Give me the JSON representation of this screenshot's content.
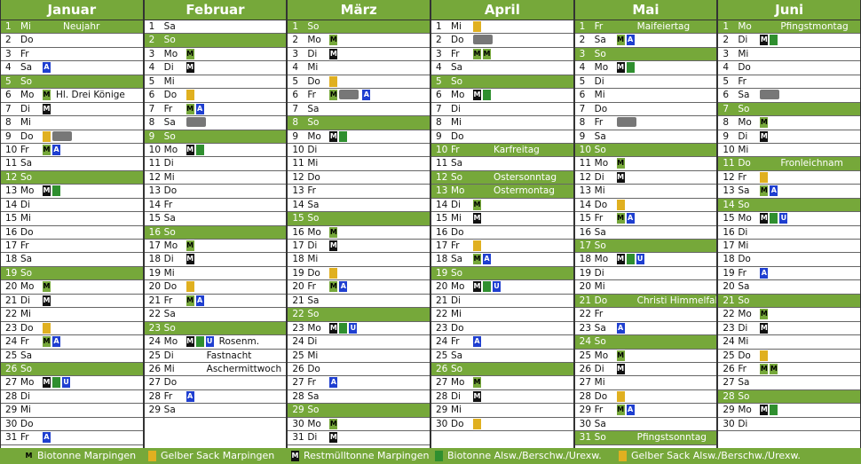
{
  "months": [
    {
      "name": "Januar",
      "days": [
        {
          "d": "1",
          "w": "Mi",
          "label": "Neujahr",
          "hl": true
        },
        {
          "d": "2",
          "w": "Do"
        },
        {
          "d": "3",
          "w": "Fr"
        },
        {
          "d": "4",
          "w": "Sa",
          "icons": [
            "a"
          ]
        },
        {
          "d": "5",
          "w": "So",
          "hl": true
        },
        {
          "d": "6",
          "w": "Mo",
          "label": "Hl. Drei Könige",
          "icons": [
            "m"
          ]
        },
        {
          "d": "7",
          "w": "Di",
          "icons": [
            "r"
          ]
        },
        {
          "d": "8",
          "w": "Mi"
        },
        {
          "d": "9",
          "w": "Do",
          "icons": [
            "y",
            "truck"
          ]
        },
        {
          "d": "10",
          "w": "Fr",
          "icons": [
            "m",
            "a"
          ]
        },
        {
          "d": "11",
          "w": "Sa"
        },
        {
          "d": "12",
          "w": "So",
          "hl": true
        },
        {
          "d": "13",
          "w": "Mo",
          "icons": [
            "r",
            "g"
          ]
        },
        {
          "d": "14",
          "w": "Di"
        },
        {
          "d": "15",
          "w": "Mi"
        },
        {
          "d": "16",
          "w": "Do"
        },
        {
          "d": "17",
          "w": "Fr"
        },
        {
          "d": "18",
          "w": "Sa"
        },
        {
          "d": "19",
          "w": "So",
          "hl": true
        },
        {
          "d": "20",
          "w": "Mo",
          "icons": [
            "m"
          ]
        },
        {
          "d": "21",
          "w": "Di",
          "icons": [
            "r"
          ]
        },
        {
          "d": "22",
          "w": "Mi"
        },
        {
          "d": "23",
          "w": "Do",
          "icons": [
            "y"
          ]
        },
        {
          "d": "24",
          "w": "Fr",
          "icons": [
            "m",
            "a"
          ]
        },
        {
          "d": "25",
          "w": "Sa"
        },
        {
          "d": "26",
          "w": "So",
          "hl": true
        },
        {
          "d": "27",
          "w": "Mo",
          "icons": [
            "r",
            "g",
            "u"
          ]
        },
        {
          "d": "28",
          "w": "Di"
        },
        {
          "d": "29",
          "w": "Mi"
        },
        {
          "d": "30",
          "w": "Do"
        },
        {
          "d": "31",
          "w": "Fr",
          "icons": [
            "a"
          ]
        }
      ]
    },
    {
      "name": "Februar",
      "days": [
        {
          "d": "1",
          "w": "Sa"
        },
        {
          "d": "2",
          "w": "So",
          "hl": true
        },
        {
          "d": "3",
          "w": "Mo",
          "icons": [
            "m"
          ]
        },
        {
          "d": "4",
          "w": "Di",
          "icons": [
            "r"
          ]
        },
        {
          "d": "5",
          "w": "Mi"
        },
        {
          "d": "6",
          "w": "Do",
          "icons": [
            "y"
          ]
        },
        {
          "d": "7",
          "w": "Fr",
          "icons": [
            "m",
            "a"
          ]
        },
        {
          "d": "8",
          "w": "Sa",
          "icons": [
            "truck"
          ]
        },
        {
          "d": "9",
          "w": "So",
          "hl": true
        },
        {
          "d": "10",
          "w": "Mo",
          "icons": [
            "r",
            "g"
          ]
        },
        {
          "d": "11",
          "w": "Di"
        },
        {
          "d": "12",
          "w": "Mi"
        },
        {
          "d": "13",
          "w": "Do"
        },
        {
          "d": "14",
          "w": "Fr"
        },
        {
          "d": "15",
          "w": "Sa"
        },
        {
          "d": "16",
          "w": "So",
          "hl": true
        },
        {
          "d": "17",
          "w": "Mo",
          "icons": [
            "m"
          ]
        },
        {
          "d": "18",
          "w": "Di",
          "icons": [
            "r"
          ]
        },
        {
          "d": "19",
          "w": "Mi"
        },
        {
          "d": "20",
          "w": "Do",
          "icons": [
            "y"
          ]
        },
        {
          "d": "21",
          "w": "Fr",
          "icons": [
            "m",
            "a"
          ]
        },
        {
          "d": "22",
          "w": "Sa"
        },
        {
          "d": "23",
          "w": "So",
          "hl": true
        },
        {
          "d": "24",
          "w": "Mo",
          "label": "Rosenm.",
          "icons": [
            "r",
            "g",
            "u"
          ]
        },
        {
          "d": "25",
          "w": "Di",
          "label": "Fastnacht"
        },
        {
          "d": "26",
          "w": "Mi",
          "label": "Aschermittwoch"
        },
        {
          "d": "27",
          "w": "Do"
        },
        {
          "d": "28",
          "w": "Fr",
          "icons": [
            "a"
          ]
        },
        {
          "d": "29",
          "w": "Sa"
        }
      ]
    },
    {
      "name": "März",
      "days": [
        {
          "d": "1",
          "w": "So",
          "hl": true
        },
        {
          "d": "2",
          "w": "Mo",
          "icons": [
            "m"
          ]
        },
        {
          "d": "3",
          "w": "Di",
          "icons": [
            "r"
          ]
        },
        {
          "d": "4",
          "w": "Mi"
        },
        {
          "d": "5",
          "w": "Do",
          "icons": [
            "y"
          ]
        },
        {
          "d": "6",
          "w": "Fr",
          "icons": [
            "m",
            "truck",
            "a"
          ]
        },
        {
          "d": "7",
          "w": "Sa"
        },
        {
          "d": "8",
          "w": "So",
          "hl": true
        },
        {
          "d": "9",
          "w": "Mo",
          "icons": [
            "r",
            "g"
          ]
        },
        {
          "d": "10",
          "w": "Di"
        },
        {
          "d": "11",
          "w": "Mi"
        },
        {
          "d": "12",
          "w": "Do"
        },
        {
          "d": "13",
          "w": "Fr"
        },
        {
          "d": "14",
          "w": "Sa"
        },
        {
          "d": "15",
          "w": "So",
          "hl": true
        },
        {
          "d": "16",
          "w": "Mo",
          "icons": [
            "m"
          ]
        },
        {
          "d": "17",
          "w": "Di",
          "icons": [
            "r"
          ]
        },
        {
          "d": "18",
          "w": "Mi"
        },
        {
          "d": "19",
          "w": "Do",
          "icons": [
            "y"
          ]
        },
        {
          "d": "20",
          "w": "Fr",
          "icons": [
            "m",
            "a"
          ]
        },
        {
          "d": "21",
          "w": "Sa"
        },
        {
          "d": "22",
          "w": "So",
          "hl": true
        },
        {
          "d": "23",
          "w": "Mo",
          "icons": [
            "r",
            "g",
            "u"
          ]
        },
        {
          "d": "24",
          "w": "Di"
        },
        {
          "d": "25",
          "w": "Mi"
        },
        {
          "d": "26",
          "w": "Do"
        },
        {
          "d": "27",
          "w": "Fr",
          "icons": [
            "a"
          ]
        },
        {
          "d": "28",
          "w": "Sa"
        },
        {
          "d": "29",
          "w": "So",
          "hl": true
        },
        {
          "d": "30",
          "w": "Mo",
          "icons": [
            "m"
          ]
        },
        {
          "d": "31",
          "w": "Di",
          "icons": [
            "r"
          ]
        }
      ]
    },
    {
      "name": "April",
      "days": [
        {
          "d": "1",
          "w": "Mi",
          "icons": [
            "y"
          ]
        },
        {
          "d": "2",
          "w": "Do",
          "icons": [
            "truck"
          ]
        },
        {
          "d": "3",
          "w": "Fr",
          "icons": [
            "m",
            "m"
          ]
        },
        {
          "d": "4",
          "w": "Sa"
        },
        {
          "d": "5",
          "w": "So",
          "hl": true
        },
        {
          "d": "6",
          "w": "Mo",
          "icons": [
            "r",
            "g"
          ]
        },
        {
          "d": "7",
          "w": "Di"
        },
        {
          "d": "8",
          "w": "Mi"
        },
        {
          "d": "9",
          "w": "Do"
        },
        {
          "d": "10",
          "w": "Fr",
          "label": "Karfreitag",
          "hl": true
        },
        {
          "d": "11",
          "w": "Sa"
        },
        {
          "d": "12",
          "w": "So",
          "label": "Ostersonntag",
          "hl": true
        },
        {
          "d": "13",
          "w": "Mo",
          "label": "Ostermontag",
          "hl": true
        },
        {
          "d": "14",
          "w": "Di",
          "icons": [
            "m"
          ]
        },
        {
          "d": "15",
          "w": "Mi",
          "icons": [
            "r"
          ]
        },
        {
          "d": "16",
          "w": "Do"
        },
        {
          "d": "17",
          "w": "Fr",
          "icons": [
            "y"
          ]
        },
        {
          "d": "18",
          "w": "Sa",
          "icons": [
            "m",
            "a"
          ]
        },
        {
          "d": "19",
          "w": "So",
          "hl": true
        },
        {
          "d": "20",
          "w": "Mo",
          "icons": [
            "r",
            "g",
            "u"
          ]
        },
        {
          "d": "21",
          "w": "Di"
        },
        {
          "d": "22",
          "w": "Mi"
        },
        {
          "d": "23",
          "w": "Do"
        },
        {
          "d": "24",
          "w": "Fr",
          "icons": [
            "a"
          ]
        },
        {
          "d": "25",
          "w": "Sa"
        },
        {
          "d": "26",
          "w": "So",
          "hl": true
        },
        {
          "d": "27",
          "w": "Mo",
          "icons": [
            "m"
          ]
        },
        {
          "d": "28",
          "w": "Di",
          "icons": [
            "r"
          ]
        },
        {
          "d": "29",
          "w": "Mi"
        },
        {
          "d": "30",
          "w": "Do",
          "icons": [
            "y"
          ]
        }
      ]
    },
    {
      "name": "Mai",
      "days": [
        {
          "d": "1",
          "w": "Fr",
          "label": "Maifeiertag",
          "hl": true
        },
        {
          "d": "2",
          "w": "Sa",
          "icons": [
            "m",
            "a"
          ]
        },
        {
          "d": "3",
          "w": "So",
          "hl": true
        },
        {
          "d": "4",
          "w": "Mo",
          "icons": [
            "r",
            "g"
          ]
        },
        {
          "d": "5",
          "w": "Di"
        },
        {
          "d": "6",
          "w": "Mi"
        },
        {
          "d": "7",
          "w": "Do"
        },
        {
          "d": "8",
          "w": "Fr",
          "icons": [
            "truck"
          ]
        },
        {
          "d": "9",
          "w": "Sa"
        },
        {
          "d": "10",
          "w": "So",
          "hl": true
        },
        {
          "d": "11",
          "w": "Mo",
          "icons": [
            "m"
          ]
        },
        {
          "d": "12",
          "w": "Di",
          "icons": [
            "r"
          ]
        },
        {
          "d": "13",
          "w": "Mi"
        },
        {
          "d": "14",
          "w": "Do",
          "icons": [
            "y"
          ]
        },
        {
          "d": "15",
          "w": "Fr",
          "icons": [
            "m",
            "a"
          ]
        },
        {
          "d": "16",
          "w": "Sa"
        },
        {
          "d": "17",
          "w": "So",
          "hl": true
        },
        {
          "d": "18",
          "w": "Mo",
          "icons": [
            "r",
            "g",
            "u"
          ]
        },
        {
          "d": "19",
          "w": "Di"
        },
        {
          "d": "20",
          "w": "Mi"
        },
        {
          "d": "21",
          "w": "Do",
          "label": "Christi Himmelfahrt",
          "hl": true
        },
        {
          "d": "22",
          "w": "Fr"
        },
        {
          "d": "23",
          "w": "Sa",
          "icons": [
            "a"
          ]
        },
        {
          "d": "24",
          "w": "So",
          "hl": true
        },
        {
          "d": "25",
          "w": "Mo",
          "icons": [
            "m"
          ]
        },
        {
          "d": "26",
          "w": "Di",
          "icons": [
            "r"
          ]
        },
        {
          "d": "27",
          "w": "Mi"
        },
        {
          "d": "28",
          "w": "Do",
          "icons": [
            "y"
          ]
        },
        {
          "d": "29",
          "w": "Fr",
          "icons": [
            "m",
            "a"
          ]
        },
        {
          "d": "30",
          "w": "Sa"
        },
        {
          "d": "31",
          "w": "So",
          "label": "Pfingstsonntag",
          "hl": true
        }
      ]
    },
    {
      "name": "Juni",
      "days": [
        {
          "d": "1",
          "w": "Mo",
          "label": "Pfingstmontag",
          "hl": true
        },
        {
          "d": "2",
          "w": "Di",
          "icons": [
            "r",
            "g"
          ]
        },
        {
          "d": "3",
          "w": "Mi"
        },
        {
          "d": "4",
          "w": "Do"
        },
        {
          "d": "5",
          "w": "Fr"
        },
        {
          "d": "6",
          "w": "Sa",
          "icons": [
            "truck"
          ]
        },
        {
          "d": "7",
          "w": "So",
          "hl": true
        },
        {
          "d": "8",
          "w": "Mo",
          "icons": [
            "m"
          ]
        },
        {
          "d": "9",
          "w": "Di",
          "icons": [
            "r"
          ]
        },
        {
          "d": "10",
          "w": "Mi"
        },
        {
          "d": "11",
          "w": "Do",
          "label": "Fronleichnam",
          "hl": true
        },
        {
          "d": "12",
          "w": "Fr",
          "icons": [
            "y"
          ]
        },
        {
          "d": "13",
          "w": "Sa",
          "icons": [
            "m",
            "a"
          ]
        },
        {
          "d": "14",
          "w": "So",
          "hl": true
        },
        {
          "d": "15",
          "w": "Mo",
          "icons": [
            "r",
            "g",
            "u"
          ]
        },
        {
          "d": "16",
          "w": "Di"
        },
        {
          "d": "17",
          "w": "Mi"
        },
        {
          "d": "18",
          "w": "Do"
        },
        {
          "d": "19",
          "w": "Fr",
          "icons": [
            "a"
          ]
        },
        {
          "d": "20",
          "w": "Sa"
        },
        {
          "d": "21",
          "w": "So",
          "hl": true
        },
        {
          "d": "22",
          "w": "Mo",
          "icons": [
            "m"
          ]
        },
        {
          "d": "23",
          "w": "Di",
          "icons": [
            "r"
          ]
        },
        {
          "d": "24",
          "w": "Mi"
        },
        {
          "d": "25",
          "w": "Do",
          "icons": [
            "y"
          ]
        },
        {
          "d": "26",
          "w": "Fr",
          "icons": [
            "m",
            "m"
          ]
        },
        {
          "d": "27",
          "w": "Sa"
        },
        {
          "d": "28",
          "w": "So",
          "hl": true
        },
        {
          "d": "29",
          "w": "Mo",
          "icons": [
            "r",
            "g"
          ]
        },
        {
          "d": "30",
          "w": "Di"
        }
      ]
    }
  ],
  "legend": [
    {
      "icon": "m",
      "text": "Biotonne Marpingen"
    },
    {
      "icon": "y",
      "text": "Gelber Sack Marpingen"
    },
    {
      "icon": "r",
      "text": "Restmülltonne Marpingen"
    },
    {
      "icon": "g",
      "text": "Biotonne Alsw./Berschw./Urexw."
    },
    {
      "icon": "y",
      "text": "Gelber Sack Alsw./Berschw./Urexw."
    }
  ],
  "colors": {
    "header": "#76a83a",
    "bio": "#76a83a",
    "gelb": "#e0b020",
    "rest": "#111111",
    "bio_alsw": "#2f8f2f",
    "blue": "#1f3fd0"
  }
}
